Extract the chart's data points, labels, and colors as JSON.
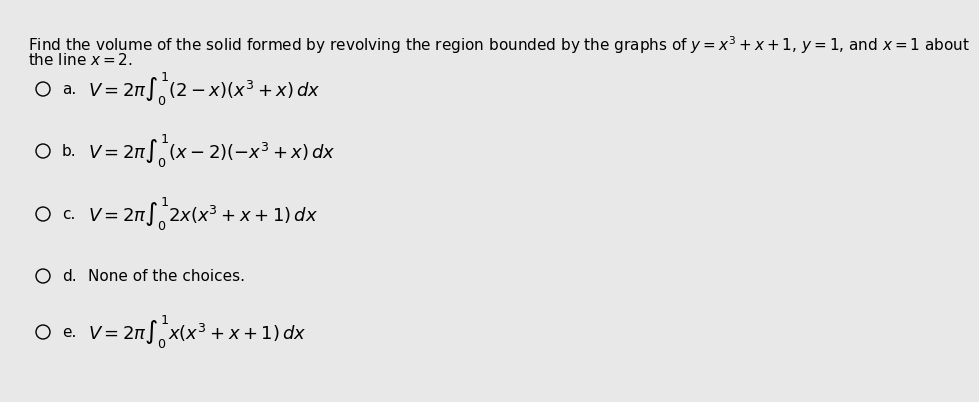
{
  "background_color": "#e8e8e8",
  "question_line1": "Find the volume of the solid formed by revolving the region bounded by the graphs of $y = x^3 + x + 1$, $y = 1$, and $x = 1$ about",
  "question_line2": "the line $x = 2$.",
  "choices": [
    {
      "label": "a.",
      "formula": "$V = 2\\pi \\int_0^1 (2 - x)(x^3 + x)\\, dx$",
      "text_only": false
    },
    {
      "label": "b.",
      "formula": "$V = 2\\pi \\int_0^1 (x - 2)(-x^3 + x)\\, dx$",
      "text_only": false
    },
    {
      "label": "c.",
      "formula": "$V = 2\\pi \\int_0^1 2x(x^3 + x + 1)\\, dx$",
      "text_only": false
    },
    {
      "label": "d.",
      "formula": "None of the choices.",
      "text_only": true
    },
    {
      "label": "e.",
      "formula": "$V = 2\\pi \\int_0^1 x(x^3 + x + 1)\\, dx$",
      "text_only": false
    }
  ],
  "font_size_question": 11,
  "font_size_choice_label": 11,
  "font_size_formula": 13,
  "text_color": "#000000"
}
